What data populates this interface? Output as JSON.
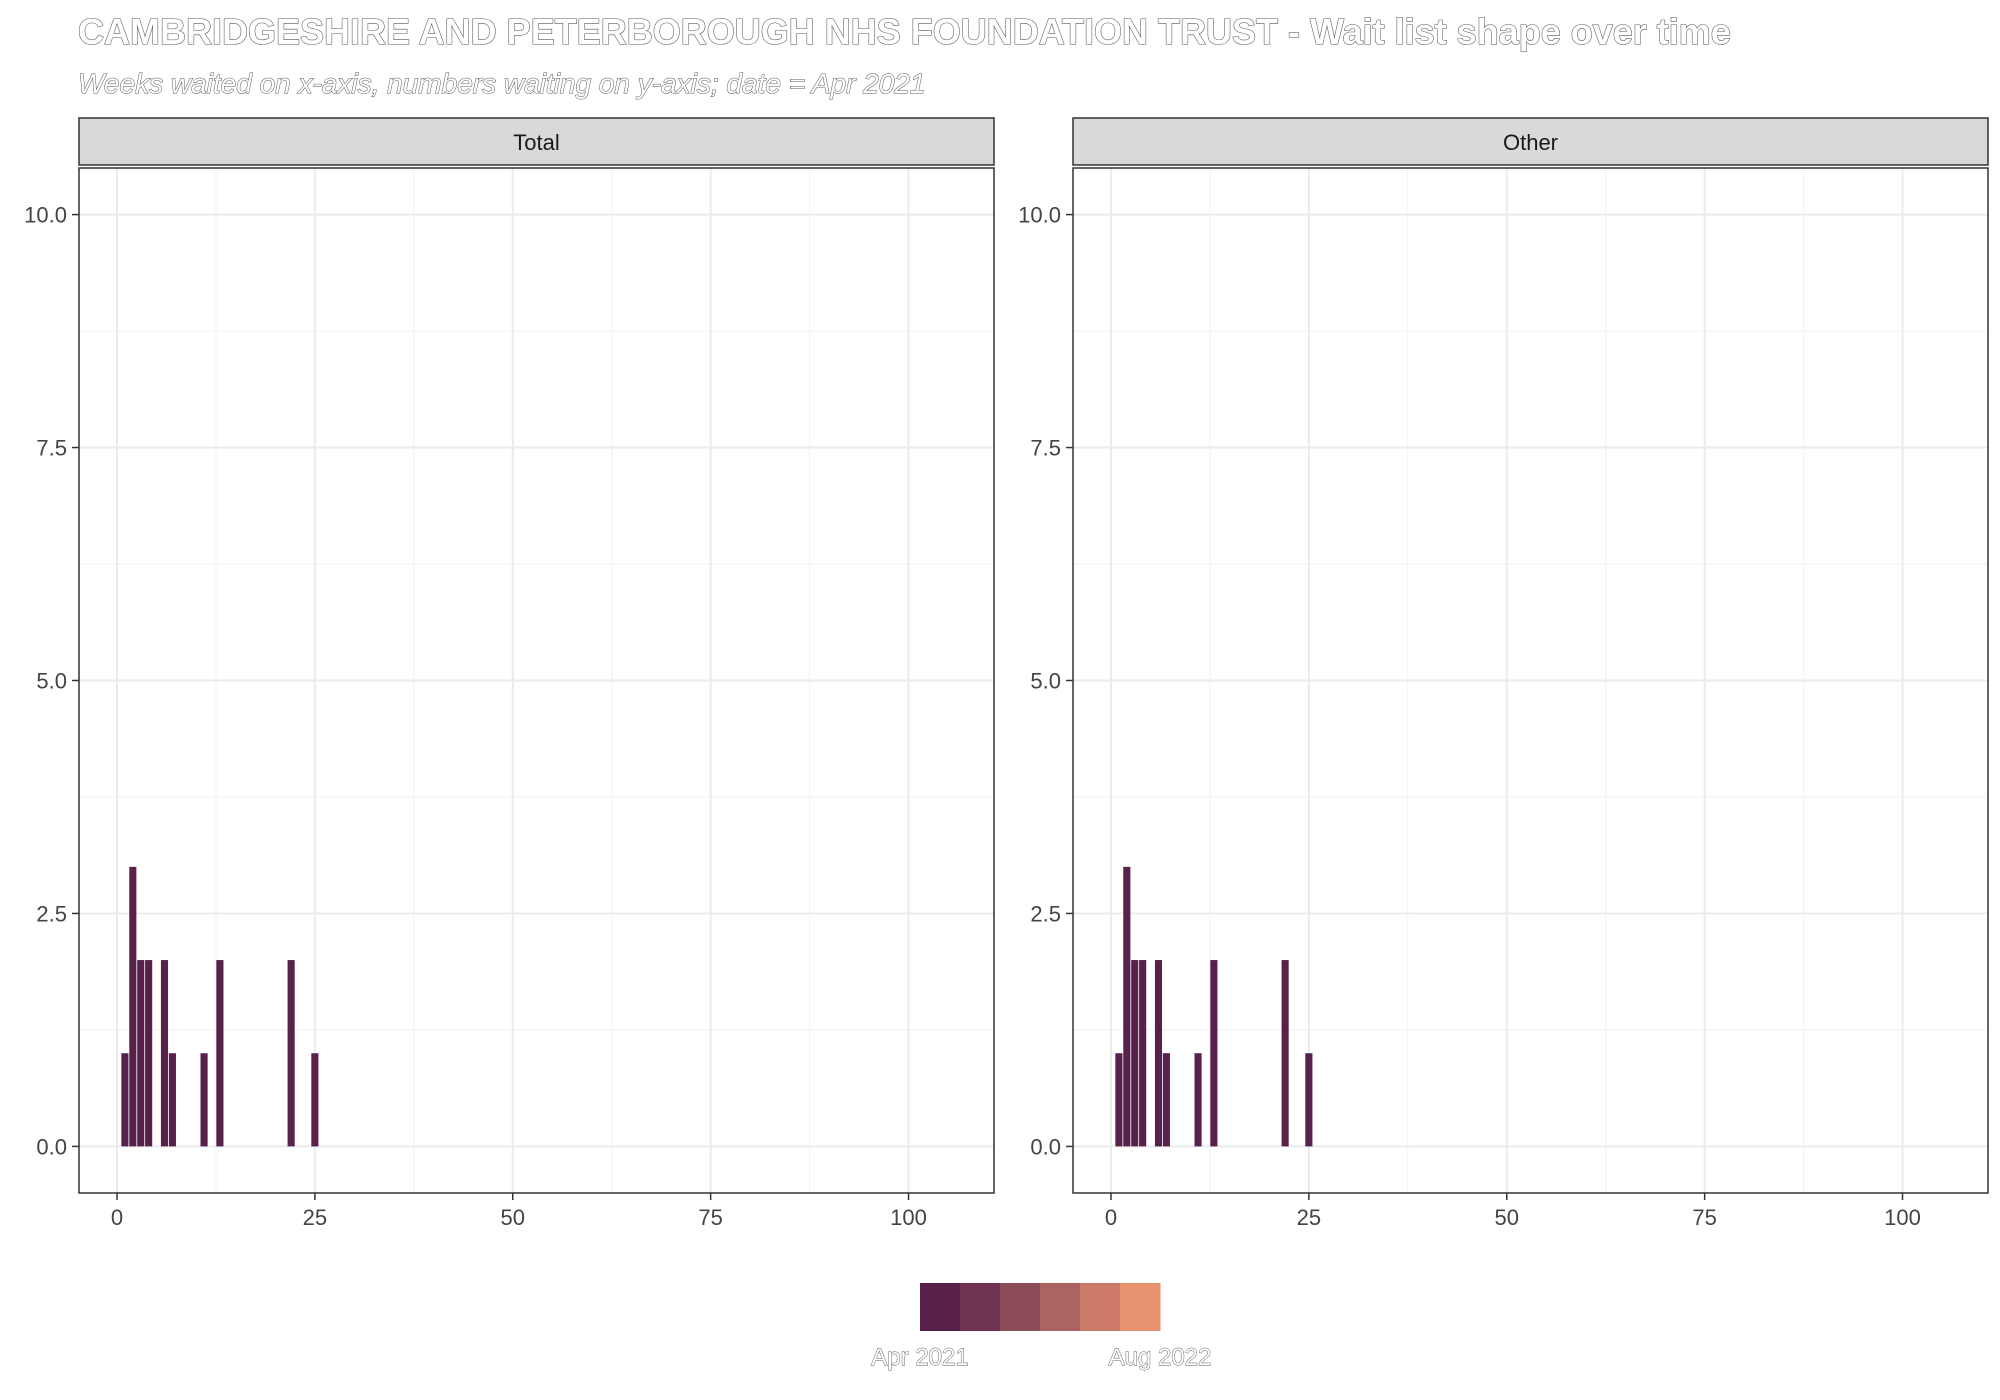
{
  "title": "CAMBRIDGESHIRE AND PETERBOROUGH NHS FOUNDATION TRUST - Wait list shape over time",
  "subtitle": "Weeks waited on x-axis, numbers waiting on y-axis; date = Apr 2021",
  "legend": {
    "start_label": "Apr 2021",
    "end_label": "Aug 2022",
    "colors": [
      "#57214b",
      "#6d334f",
      "#8c4c5a",
      "#ab6462",
      "#cc7b6b",
      "#e8926f"
    ]
  },
  "chart_data": [
    {
      "type": "bar",
      "panel": "Total",
      "x": [
        1,
        2,
        3,
        4,
        6,
        7,
        11,
        13,
        22,
        25
      ],
      "values": [
        1,
        3,
        2,
        2,
        2,
        1,
        1,
        2,
        2,
        1
      ],
      "bar_color": "#57214b",
      "xlim": [
        -4.8,
        110.8
      ],
      "ylim": [
        -0.5,
        10.5
      ],
      "xticks": [
        0,
        25,
        50,
        75,
        100
      ],
      "yticks": [
        0.0,
        2.5,
        5.0,
        7.5,
        10.0
      ],
      "ytick_labels": [
        "0.0",
        "2.5",
        "5.0",
        "7.5",
        "10.0"
      ],
      "xlabel": "",
      "ylabel": "",
      "grid": true
    },
    {
      "type": "bar",
      "panel": "Other",
      "x": [
        1,
        2,
        3,
        4,
        6,
        7,
        11,
        13,
        22,
        25
      ],
      "values": [
        1,
        3,
        2,
        2,
        2,
        1,
        1,
        2,
        2,
        1
      ],
      "bar_color": "#57214b",
      "xlim": [
        -4.8,
        110.8
      ],
      "ylim": [
        -0.5,
        10.5
      ],
      "xticks": [
        0,
        25,
        50,
        75,
        100
      ],
      "yticks": [
        0.0,
        2.5,
        5.0,
        7.5,
        10.0
      ],
      "ytick_labels": [
        "0.0",
        "2.5",
        "5.0",
        "7.5",
        "10.0"
      ],
      "xlabel": "",
      "ylabel": "",
      "grid": true
    }
  ]
}
